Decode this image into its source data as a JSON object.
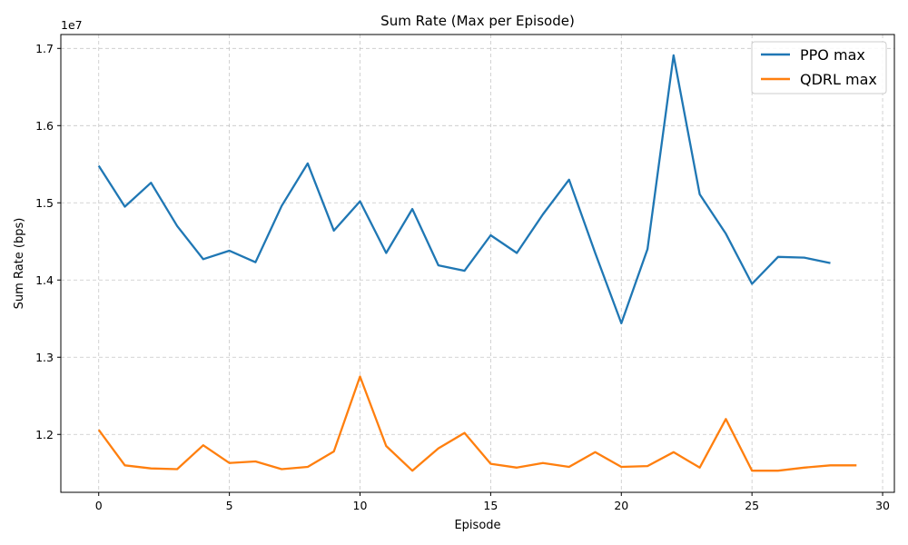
{
  "chart_data": {
    "type": "line",
    "title": "Sum Rate (Max per Episode)",
    "xlabel": "Episode",
    "ylabel": "Sum Rate (bps)",
    "y_offset_label": "1e7",
    "y_scale": 10000000,
    "xlim": [
      -1.45,
      30.45
    ],
    "ylim": [
      11250000,
      17180000
    ],
    "x_ticks": [
      0,
      5,
      10,
      15,
      20,
      25,
      30
    ],
    "y_ticks": [
      12000000,
      13000000,
      14000000,
      15000000,
      16000000,
      17000000
    ],
    "y_tick_labels": [
      "1.2",
      "1.3",
      "1.4",
      "1.5",
      "1.6",
      "1.7"
    ],
    "grid": true,
    "legend_position": "top-right",
    "series": [
      {
        "name": "PPO max",
        "color": "#1f77b4",
        "x": [
          0,
          1,
          2,
          3,
          4,
          5,
          6,
          7,
          8,
          9,
          10,
          11,
          12,
          13,
          14,
          15,
          16,
          17,
          18,
          19,
          20,
          21,
          22,
          23,
          24,
          25,
          26,
          27,
          28
        ],
        "values": [
          15480000,
          14950000,
          15260000,
          14700000,
          14270000,
          14380000,
          14230000,
          14960000,
          15510000,
          14640000,
          15020000,
          14350000,
          14920000,
          14190000,
          14120000,
          14580000,
          14350000,
          14850000,
          15300000,
          14350000,
          13440000,
          14400000,
          16910000,
          15110000,
          14600000,
          13950000,
          14300000,
          14290000,
          14220000
        ]
      },
      {
        "name": "QDRL max",
        "color": "#ff7f0e",
        "x": [
          0,
          1,
          2,
          3,
          4,
          5,
          6,
          7,
          8,
          9,
          10,
          11,
          12,
          13,
          14,
          15,
          16,
          17,
          18,
          19,
          20,
          21,
          22,
          23,
          24,
          25,
          26,
          27,
          28,
          29
        ],
        "values": [
          12060000,
          11600000,
          11560000,
          11550000,
          11860000,
          11630000,
          11650000,
          11550000,
          11580000,
          11780000,
          12750000,
          11850000,
          11530000,
          11820000,
          12020000,
          11620000,
          11570000,
          11630000,
          11580000,
          11770000,
          11580000,
          11590000,
          11770000,
          11570000,
          12200000,
          11530000,
          11530000,
          11570000,
          11600000,
          11600000
        ]
      }
    ]
  }
}
